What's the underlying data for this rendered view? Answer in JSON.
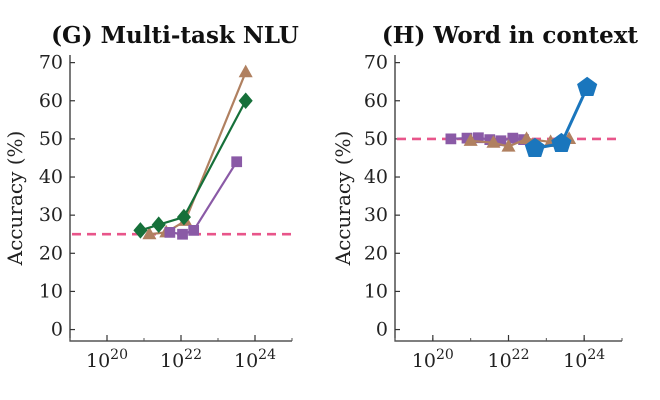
{
  "chart_data": [
    {
      "type": "line",
      "title": "(G) Multi-task NLU",
      "ylabel": "Accuracy (%)",
      "xlabel": "",
      "xscale": "log",
      "xlim": [
        1e+19,
        1e+25
      ],
      "ylim": [
        -3,
        72
      ],
      "yticks": [
        0,
        10,
        20,
        30,
        40,
        50,
        60,
        70
      ],
      "xticks": [
        {
          "value": 1e+20,
          "base": "10",
          "exp": "20"
        },
        {
          "value": 1e+22,
          "base": "10",
          "exp": "22"
        },
        {
          "value": 1e+24,
          "base": "10",
          "exp": "24"
        }
      ],
      "grid": false,
      "baseline": {
        "y": 25,
        "color": "#e8558a",
        "style": "dashed"
      },
      "series": [
        {
          "color": "#b08060",
          "marker": "triangle",
          "points": [
            [
              1.4e+21,
              25
            ],
            [
              4e+21,
              25.5
            ],
            [
              1.3e+22,
              28.5
            ],
            [
              5.6e+23,
              67.5
            ]
          ]
        },
        {
          "color": "#8a5aa6",
          "marker": "square",
          "points": [
            [
              5e+21,
              25.5
            ],
            [
              1.1e+22,
              25
            ],
            [
              2.2e+22,
              26
            ],
            [
              3.2e+23,
              44
            ]
          ]
        },
        {
          "color": "#16703a",
          "marker": "diamond",
          "points": [
            [
              8e+20,
              26
            ],
            [
              2.5e+21,
              27.5
            ],
            [
              1.2e+22,
              29.5
            ],
            [
              5.6e+23,
              60
            ]
          ]
        }
      ]
    },
    {
      "type": "line",
      "title": "(H) Word in context",
      "ylabel": "Accuracy (%)",
      "xlabel": "",
      "xscale": "log",
      "xlim": [
        1e+19,
        1e+25
      ],
      "ylim": [
        -3,
        72
      ],
      "yticks": [
        0,
        10,
        20,
        30,
        40,
        50,
        60,
        70
      ],
      "xticks": [
        {
          "value": 1e+20,
          "base": "10",
          "exp": "20"
        },
        {
          "value": 1e+22,
          "base": "10",
          "exp": "22"
        },
        {
          "value": 1e+24,
          "base": "10",
          "exp": "24"
        }
      ],
      "grid": false,
      "baseline": {
        "y": 50,
        "color": "#e8558a",
        "style": "dashed"
      },
      "series": [
        {
          "color": "#8a5aa6",
          "marker": "square",
          "points": [
            [
              3e+20,
              50
            ],
            [
              8e+20,
              50.2
            ],
            [
              1.6e+21,
              50.3
            ],
            [
              3.2e+21,
              49.8
            ],
            [
              6.3e+21,
              49.5
            ],
            [
              1.3e+22,
              50.2
            ],
            [
              2.5e+22,
              49.8
            ]
          ]
        },
        {
          "color": "#b08060",
          "marker": "triangle",
          "points": [
            [
              1e+21,
              49.5
            ],
            [
              4e+21,
              49
            ],
            [
              1e+22,
              48
            ],
            [
              3e+22,
              50
            ],
            [
              1.3e+23,
              49.2
            ],
            [
              4e+23,
              50
            ]
          ]
        },
        {
          "color": "#1a76bd",
          "marker": "pentagon",
          "points": [
            [
              5e+22,
              47.5
            ],
            [
              2.5e+23,
              48.8
            ],
            [
              1.2e+24,
              63.5
            ]
          ]
        }
      ]
    }
  ]
}
